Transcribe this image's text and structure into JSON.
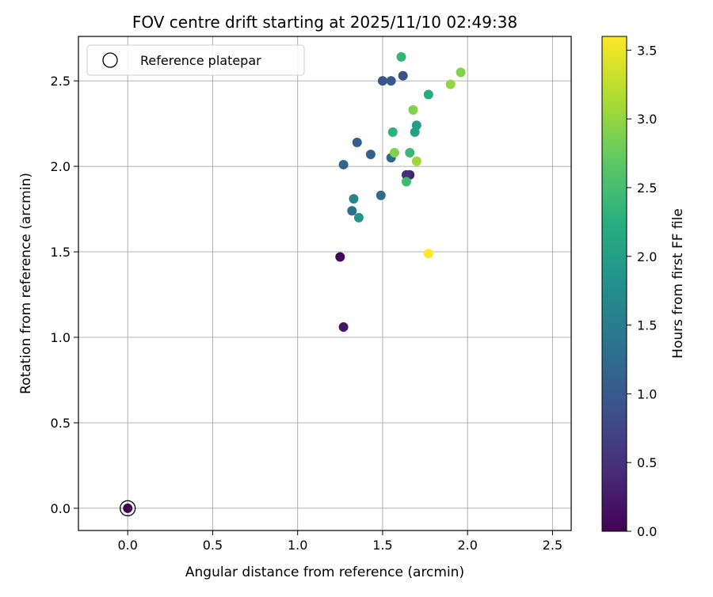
{
  "chart_data": {
    "type": "scatter",
    "title": "FOV centre drift starting at 2025/11/10 02:49:38",
    "xlabel": "Angular distance from reference (arcmin)",
    "ylabel": "Rotation from reference (arcmin)",
    "xlim": [
      -0.29,
      2.61
    ],
    "ylim": [
      -0.13,
      2.76
    ],
    "xticks": [
      0.0,
      0.5,
      1.0,
      1.5,
      2.0,
      2.5
    ],
    "xtick_labels": [
      "0.0",
      "0.5",
      "1.0",
      "1.5",
      "2.0",
      "2.5"
    ],
    "yticks": [
      0.0,
      0.5,
      1.0,
      1.5,
      2.0,
      2.5
    ],
    "ytick_labels": [
      "0.0",
      "0.5",
      "1.0",
      "1.5",
      "2.0",
      "2.5"
    ],
    "grid": true,
    "legend": {
      "location": "upper-left",
      "entries": [
        "Reference platepar"
      ]
    },
    "reference_point": {
      "x": 0.0,
      "y": 0.0,
      "hours": 0.0,
      "label": "Reference platepar"
    },
    "colorbar": {
      "label": "Hours from first FF file",
      "colormap": "viridis",
      "range": [
        0.0,
        3.6
      ],
      "ticks": [
        0.0,
        0.5,
        1.0,
        1.5,
        2.0,
        2.5,
        3.0,
        3.5
      ],
      "tick_labels": [
        "0.0",
        "0.5",
        "1.0",
        "1.5",
        "2.0",
        "2.5",
        "3.0",
        "3.5"
      ]
    },
    "points": [
      {
        "x": 0.0,
        "y": 0.0,
        "hours": 0.0
      },
      {
        "x": 1.25,
        "y": 1.47,
        "hours": 0.05
      },
      {
        "x": 1.27,
        "y": 1.06,
        "hours": 0.2
      },
      {
        "x": 1.66,
        "y": 1.95,
        "hours": 0.35
      },
      {
        "x": 1.64,
        "y": 1.95,
        "hours": 0.45
      },
      {
        "x": 1.62,
        "y": 2.53,
        "hours": 0.9
      },
      {
        "x": 1.5,
        "y": 2.5,
        "hours": 0.95
      },
      {
        "x": 1.55,
        "y": 2.5,
        "hours": 1.0
      },
      {
        "x": 1.35,
        "y": 2.14,
        "hours": 1.05
      },
      {
        "x": 1.43,
        "y": 2.07,
        "hours": 1.1
      },
      {
        "x": 1.27,
        "y": 2.01,
        "hours": 1.15
      },
      {
        "x": 1.55,
        "y": 2.05,
        "hours": 1.2
      },
      {
        "x": 1.49,
        "y": 1.83,
        "hours": 1.25
      },
      {
        "x": 1.32,
        "y": 1.74,
        "hours": 1.35
      },
      {
        "x": 1.33,
        "y": 1.81,
        "hours": 1.65
      },
      {
        "x": 1.36,
        "y": 1.7,
        "hours": 1.85
      },
      {
        "x": 1.7,
        "y": 2.24,
        "hours": 2.0
      },
      {
        "x": 1.69,
        "y": 2.2,
        "hours": 2.05
      },
      {
        "x": 1.77,
        "y": 2.42,
        "hours": 2.2
      },
      {
        "x": 1.56,
        "y": 2.2,
        "hours": 2.3
      },
      {
        "x": 1.61,
        "y": 2.64,
        "hours": 2.35
      },
      {
        "x": 1.66,
        "y": 2.08,
        "hours": 2.4
      },
      {
        "x": 1.64,
        "y": 1.91,
        "hours": 2.45
      },
      {
        "x": 1.68,
        "y": 2.33,
        "hours": 2.9
      },
      {
        "x": 1.57,
        "y": 2.08,
        "hours": 2.9
      },
      {
        "x": 1.96,
        "y": 2.55,
        "hours": 2.9
      },
      {
        "x": 1.9,
        "y": 2.48,
        "hours": 3.0
      },
      {
        "x": 1.7,
        "y": 2.03,
        "hours": 3.05
      },
      {
        "x": 1.77,
        "y": 1.49,
        "hours": 3.6
      }
    ]
  }
}
